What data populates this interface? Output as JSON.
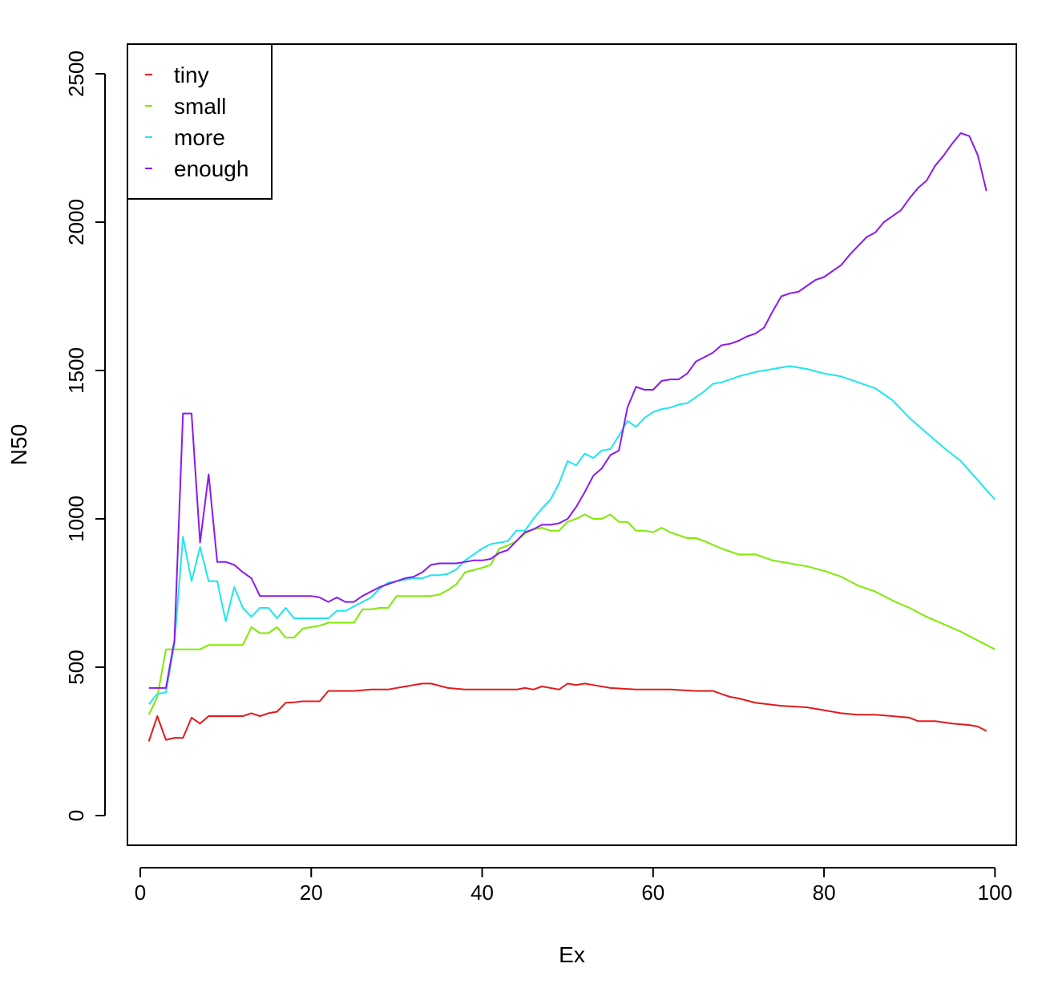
{
  "chart_data": {
    "type": "line",
    "title": "",
    "xlabel": "Ex",
    "ylabel": "N50",
    "xlim": [
      -1.5,
      102.5
    ],
    "ylim": [
      -100,
      2600
    ],
    "x_ticks": [
      0,
      20,
      40,
      60,
      80,
      100
    ],
    "y_ticks": [
      0,
      500,
      1000,
      1500,
      2000,
      2500
    ],
    "x_tick_labels": [
      "0",
      "20",
      "40",
      "60",
      "80",
      "100"
    ],
    "y_tick_labels": [
      "0",
      "500",
      "1000",
      "1500",
      "2000",
      "2500"
    ],
    "grid": false,
    "legend_position": "top-left",
    "series": [
      {
        "name": "tiny",
        "color": "#e31a1c",
        "points": [
          [
            1,
            250
          ],
          [
            2,
            335
          ],
          [
            3,
            255
          ],
          [
            4,
            262
          ],
          [
            5,
            262
          ],
          [
            6,
            330
          ],
          [
            7,
            310
          ],
          [
            8,
            335
          ],
          [
            9,
            335
          ],
          [
            10,
            335
          ],
          [
            11,
            335
          ],
          [
            12,
            335
          ],
          [
            13,
            345
          ],
          [
            14,
            335
          ],
          [
            15,
            345
          ],
          [
            16,
            350
          ],
          [
            17,
            380
          ],
          [
            18,
            382
          ],
          [
            19,
            385
          ],
          [
            20,
            385
          ],
          [
            21,
            385
          ],
          [
            22,
            420
          ],
          [
            25,
            420
          ],
          [
            27,
            425
          ],
          [
            29,
            425
          ],
          [
            31,
            435
          ],
          [
            33,
            445
          ],
          [
            34,
            445
          ],
          [
            36,
            430
          ],
          [
            38,
            425
          ],
          [
            40,
            425
          ],
          [
            44,
            425
          ],
          [
            45,
            430
          ],
          [
            46,
            425
          ],
          [
            47,
            435
          ],
          [
            48,
            430
          ],
          [
            49,
            425
          ],
          [
            50,
            445
          ],
          [
            51,
            440
          ],
          [
            52,
            445
          ],
          [
            53,
            440
          ],
          [
            55,
            430
          ],
          [
            58,
            425
          ],
          [
            62,
            425
          ],
          [
            65,
            420
          ],
          [
            67,
            420
          ],
          [
            68,
            410
          ],
          [
            69,
            400
          ],
          [
            70,
            395
          ],
          [
            72,
            380
          ],
          [
            75,
            370
          ],
          [
            78,
            365
          ],
          [
            80,
            355
          ],
          [
            82,
            345
          ],
          [
            84,
            340
          ],
          [
            86,
            340
          ],
          [
            88,
            335
          ],
          [
            90,
            330
          ],
          [
            91,
            318
          ],
          [
            93,
            318
          ],
          [
            95,
            310
          ],
          [
            97,
            305
          ],
          [
            98,
            300
          ],
          [
            99,
            285
          ]
        ]
      },
      {
        "name": "small",
        "color": "#7fea00",
        "points": [
          [
            1,
            340
          ],
          [
            2,
            400
          ],
          [
            3,
            560
          ],
          [
            4,
            560
          ],
          [
            5,
            560
          ],
          [
            6,
            560
          ],
          [
            7,
            560
          ],
          [
            8,
            575
          ],
          [
            9,
            575
          ],
          [
            10,
            575
          ],
          [
            11,
            575
          ],
          [
            12,
            575
          ],
          [
            13,
            635
          ],
          [
            14,
            615
          ],
          [
            15,
            615
          ],
          [
            16,
            635
          ],
          [
            17,
            600
          ],
          [
            18,
            600
          ],
          [
            19,
            630
          ],
          [
            20,
            635
          ],
          [
            21,
            640
          ],
          [
            22,
            650
          ],
          [
            24,
            650
          ],
          [
            25,
            650
          ],
          [
            26,
            695
          ],
          [
            27,
            695
          ],
          [
            28,
            700
          ],
          [
            29,
            700
          ],
          [
            30,
            740
          ],
          [
            31,
            740
          ],
          [
            32,
            740
          ],
          [
            34,
            740
          ],
          [
            35,
            745
          ],
          [
            36,
            760
          ],
          [
            37,
            780
          ],
          [
            38,
            820
          ],
          [
            40,
            835
          ],
          [
            41,
            845
          ],
          [
            42,
            900
          ],
          [
            43,
            910
          ],
          [
            44,
            925
          ],
          [
            45,
            950
          ],
          [
            46,
            965
          ],
          [
            47,
            970
          ],
          [
            48,
            960
          ],
          [
            49,
            960
          ],
          [
            50,
            990
          ],
          [
            51,
            1000
          ],
          [
            52,
            1015
          ],
          [
            53,
            1000
          ],
          [
            54,
            1000
          ],
          [
            55,
            1015
          ],
          [
            56,
            990
          ],
          [
            57,
            990
          ],
          [
            58,
            960
          ],
          [
            59,
            960
          ],
          [
            60,
            955
          ],
          [
            61,
            970
          ],
          [
            62,
            955
          ],
          [
            63,
            945
          ],
          [
            64,
            935
          ],
          [
            65,
            935
          ],
          [
            66,
            925
          ],
          [
            68,
            900
          ],
          [
            70,
            880
          ],
          [
            72,
            880
          ],
          [
            74,
            860
          ],
          [
            76,
            850
          ],
          [
            78,
            840
          ],
          [
            80,
            825
          ],
          [
            82,
            805
          ],
          [
            84,
            775
          ],
          [
            86,
            755
          ],
          [
            88,
            725
          ],
          [
            90,
            700
          ],
          [
            92,
            670
          ],
          [
            94,
            645
          ],
          [
            96,
            620
          ],
          [
            98,
            590
          ],
          [
            100,
            560
          ]
        ]
      },
      {
        "name": "more",
        "color": "#1ee6ee",
        "points": [
          [
            1,
            375
          ],
          [
            2,
            410
          ],
          [
            3,
            415
          ],
          [
            4,
            580
          ],
          [
            5,
            940
          ],
          [
            6,
            790
          ],
          [
            7,
            905
          ],
          [
            8,
            790
          ],
          [
            9,
            790
          ],
          [
            10,
            655
          ],
          [
            11,
            770
          ],
          [
            12,
            700
          ],
          [
            13,
            670
          ],
          [
            14,
            700
          ],
          [
            15,
            700
          ],
          [
            16,
            665
          ],
          [
            17,
            700
          ],
          [
            18,
            665
          ],
          [
            19,
            665
          ],
          [
            20,
            665
          ],
          [
            21,
            665
          ],
          [
            22,
            665
          ],
          [
            23,
            690
          ],
          [
            24,
            690
          ],
          [
            25,
            705
          ],
          [
            26,
            720
          ],
          [
            27,
            735
          ],
          [
            28,
            765
          ],
          [
            29,
            785
          ],
          [
            30,
            790
          ],
          [
            31,
            795
          ],
          [
            32,
            800
          ],
          [
            33,
            800
          ],
          [
            34,
            810
          ],
          [
            35,
            810
          ],
          [
            36,
            815
          ],
          [
            37,
            830
          ],
          [
            38,
            860
          ],
          [
            39,
            880
          ],
          [
            40,
            900
          ],
          [
            41,
            915
          ],
          [
            42,
            920
          ],
          [
            43,
            925
          ],
          [
            44,
            960
          ],
          [
            45,
            960
          ],
          [
            46,
            1000
          ],
          [
            47,
            1035
          ],
          [
            48,
            1065
          ],
          [
            49,
            1120
          ],
          [
            50,
            1195
          ],
          [
            51,
            1180
          ],
          [
            52,
            1220
          ],
          [
            53,
            1205
          ],
          [
            54,
            1230
          ],
          [
            55,
            1235
          ],
          [
            56,
            1280
          ],
          [
            57,
            1330
          ],
          [
            58,
            1310
          ],
          [
            59,
            1340
          ],
          [
            60,
            1360
          ],
          [
            61,
            1370
          ],
          [
            62,
            1375
          ],
          [
            63,
            1385
          ],
          [
            64,
            1390
          ],
          [
            65,
            1410
          ],
          [
            66,
            1430
          ],
          [
            67,
            1455
          ],
          [
            68,
            1460
          ],
          [
            70,
            1480
          ],
          [
            72,
            1495
          ],
          [
            74,
            1505
          ],
          [
            76,
            1515
          ],
          [
            78,
            1505
          ],
          [
            80,
            1490
          ],
          [
            82,
            1480
          ],
          [
            84,
            1460
          ],
          [
            86,
            1440
          ],
          [
            88,
            1400
          ],
          [
            90,
            1340
          ],
          [
            92,
            1290
          ],
          [
            94,
            1240
          ],
          [
            96,
            1195
          ],
          [
            98,
            1130
          ],
          [
            100,
            1065
          ]
        ]
      },
      {
        "name": "enough",
        "color": "#8a1aee",
        "points": [
          [
            1,
            430
          ],
          [
            2,
            430
          ],
          [
            3,
            430
          ],
          [
            4,
            590
          ],
          [
            5,
            1355
          ],
          [
            6,
            1355
          ],
          [
            7,
            920
          ],
          [
            8,
            1150
          ],
          [
            9,
            855
          ],
          [
            10,
            855
          ],
          [
            11,
            845
          ],
          [
            12,
            820
          ],
          [
            13,
            800
          ],
          [
            14,
            740
          ],
          [
            15,
            740
          ],
          [
            16,
            740
          ],
          [
            18,
            740
          ],
          [
            20,
            740
          ],
          [
            21,
            735
          ],
          [
            22,
            720
          ],
          [
            23,
            735
          ],
          [
            24,
            720
          ],
          [
            25,
            720
          ],
          [
            26,
            740
          ],
          [
            27,
            755
          ],
          [
            28,
            770
          ],
          [
            29,
            780
          ],
          [
            30,
            790
          ],
          [
            31,
            800
          ],
          [
            32,
            805
          ],
          [
            33,
            820
          ],
          [
            34,
            845
          ],
          [
            35,
            850
          ],
          [
            36,
            850
          ],
          [
            37,
            850
          ],
          [
            38,
            855
          ],
          [
            39,
            860
          ],
          [
            40,
            860
          ],
          [
            41,
            865
          ],
          [
            42,
            885
          ],
          [
            43,
            895
          ],
          [
            44,
            925
          ],
          [
            45,
            955
          ],
          [
            46,
            965
          ],
          [
            47,
            980
          ],
          [
            48,
            980
          ],
          [
            49,
            985
          ],
          [
            50,
            1000
          ],
          [
            51,
            1040
          ],
          [
            52,
            1090
          ],
          [
            53,
            1145
          ],
          [
            54,
            1170
          ],
          [
            55,
            1215
          ],
          [
            56,
            1230
          ],
          [
            57,
            1375
          ],
          [
            58,
            1445
          ],
          [
            59,
            1435
          ],
          [
            60,
            1435
          ],
          [
            61,
            1465
          ],
          [
            62,
            1470
          ],
          [
            63,
            1470
          ],
          [
            64,
            1490
          ],
          [
            65,
            1530
          ],
          [
            66,
            1545
          ],
          [
            67,
            1560
          ],
          [
            68,
            1585
          ],
          [
            69,
            1590
          ],
          [
            70,
            1600
          ],
          [
            71,
            1615
          ],
          [
            72,
            1625
          ],
          [
            73,
            1645
          ],
          [
            74,
            1700
          ],
          [
            75,
            1750
          ],
          [
            76,
            1760
          ],
          [
            77,
            1765
          ],
          [
            78,
            1785
          ],
          [
            79,
            1805
          ],
          [
            80,
            1815
          ],
          [
            81,
            1835
          ],
          [
            82,
            1855
          ],
          [
            83,
            1890
          ],
          [
            84,
            1920
          ],
          [
            85,
            1950
          ],
          [
            86,
            1965
          ],
          [
            87,
            2000
          ],
          [
            88,
            2020
          ],
          [
            89,
            2040
          ],
          [
            90,
            2080
          ],
          [
            91,
            2115
          ],
          [
            92,
            2140
          ],
          [
            93,
            2190
          ],
          [
            94,
            2225
          ],
          [
            95,
            2265
          ],
          [
            96,
            2300
          ],
          [
            97,
            2290
          ],
          [
            98,
            2225
          ],
          [
            99,
            2105
          ]
        ]
      }
    ]
  }
}
